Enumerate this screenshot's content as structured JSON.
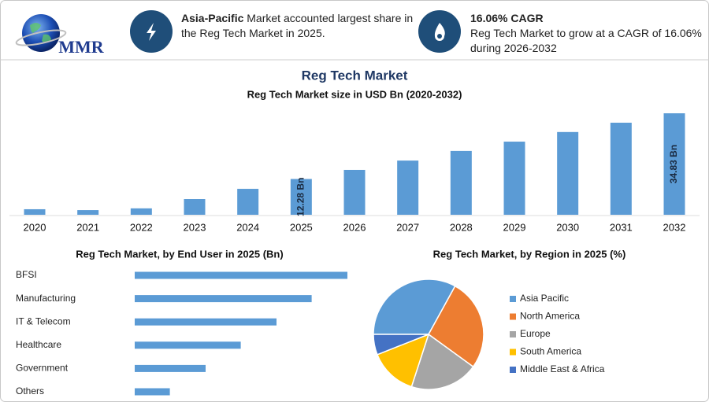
{
  "header": {
    "logo": "MMR",
    "info": [
      {
        "highlight": "Asia-Pacific",
        "text": "Market accounted largest share in the Reg Tech Market in 2025."
      },
      {
        "highlight": "16.06% CAGR",
        "text": "Reg Tech Market to grow at a CAGR of 16.06% during 2026-2032"
      }
    ]
  },
  "title": "Reg Tech Market",
  "chart_data": [
    {
      "type": "bar",
      "title": "Reg Tech Market size in USD Bn (2020-2032)",
      "categories": [
        "2020",
        "2021",
        "2022",
        "2023",
        "2024",
        "2025",
        "2026",
        "2027",
        "2028",
        "2029",
        "2030",
        "2031",
        "2032"
      ],
      "values": [
        1.9,
        1.6,
        2.2,
        5.4,
        8.9,
        12.28,
        15.4,
        18.6,
        21.9,
        25.1,
        28.4,
        31.6,
        34.83
      ],
      "value_labels": [
        null,
        null,
        null,
        null,
        null,
        "12.28 Bn",
        null,
        null,
        null,
        null,
        null,
        null,
        "34.83 Bn"
      ],
      "color": "#5b9bd5"
    },
    {
      "type": "hbar",
      "title": "Reg Tech Market, by End User in 2025 (Bn)",
      "categories": [
        "BFSI",
        "Manufacturing",
        "IT & Telecom",
        "Healthcare",
        "Government",
        "Others"
      ],
      "values": [
        3.51,
        2.92,
        2.34,
        1.75,
        1.17,
        0.58
      ],
      "color": "#5b9bd5"
    },
    {
      "type": "pie",
      "title": "Reg Tech Market, by Region in 2025 (%)",
      "categories": [
        "Asia Pacific",
        "North America",
        "Europe",
        "South America",
        "Middle East & Africa"
      ],
      "values": [
        33,
        27,
        20,
        14,
        6
      ],
      "colors": [
        "#5b9bd5",
        "#ed7d31",
        "#a5a5a5",
        "#ffc000",
        "#4472c4"
      ]
    }
  ]
}
